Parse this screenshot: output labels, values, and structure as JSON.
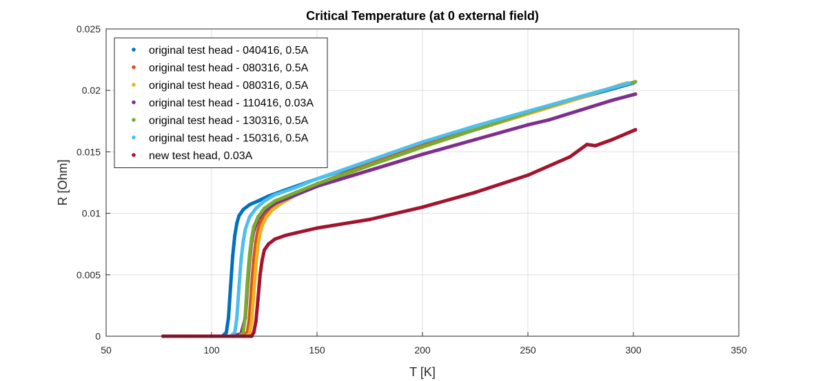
{
  "chart_data": {
    "type": "scatter",
    "title": "Critical Temperature (at 0 external field)",
    "xlabel": "T [K]",
    "ylabel": "R [Ohm]",
    "xlim": [
      50,
      350
    ],
    "ylim": [
      0,
      0.025
    ],
    "xticks": [
      50,
      100,
      150,
      200,
      250,
      300,
      350
    ],
    "yticks": [
      0,
      0.005,
      0.01,
      0.015,
      0.02,
      0.025
    ],
    "ytick_labels": [
      "0",
      "0.005",
      "0.01",
      "0.015",
      "0.02",
      "0.025"
    ],
    "grid": true,
    "legend_position": "top-left",
    "series": [
      {
        "name": "original test head - 040416, 0.5A",
        "color": "#0072BD",
        "x": [
          77,
          90,
          100,
          105,
          107,
          108,
          109,
          110,
          111,
          112,
          113,
          115,
          118,
          122,
          127,
          135,
          150,
          175,
          200,
          225,
          250,
          275,
          300
        ],
        "y": [
          0,
          0,
          0,
          0,
          0.0003,
          0.0015,
          0.004,
          0.0065,
          0.0082,
          0.0092,
          0.0098,
          0.0103,
          0.0107,
          0.011,
          0.0114,
          0.0119,
          0.0128,
          0.0142,
          0.0156,
          0.0168,
          0.0181,
          0.0194,
          0.0206
        ]
      },
      {
        "name": "original test head - 080316, 0.5A",
        "color": "#D95319",
        "x": [
          77,
          100,
          110,
          115,
          117,
          118,
          119,
          120,
          121,
          122,
          123,
          125,
          128,
          132,
          140,
          150,
          175,
          200,
          225,
          250,
          275,
          295
        ],
        "y": [
          0,
          0,
          0,
          0,
          0.0003,
          0.0015,
          0.004,
          0.0062,
          0.0077,
          0.0086,
          0.0092,
          0.0098,
          0.0104,
          0.0109,
          0.0116,
          0.0124,
          0.014,
          0.0155,
          0.0168,
          0.0181,
          0.0194,
          0.0205
        ]
      },
      {
        "name": "original test head - 080316, 0.5A",
        "color": "#EDB120",
        "x": [
          77,
          100,
          110,
          116,
          118,
          119,
          120,
          121,
          122,
          123,
          124,
          126,
          129,
          133,
          140,
          150,
          175,
          200,
          225,
          250,
          275,
          297
        ],
        "y": [
          0,
          0,
          0,
          0,
          0.0002,
          0.0012,
          0.0035,
          0.0058,
          0.0074,
          0.0084,
          0.009,
          0.0097,
          0.0103,
          0.0108,
          0.0115,
          0.0123,
          0.0139,
          0.0154,
          0.0168,
          0.0181,
          0.0194,
          0.0206
        ]
      },
      {
        "name": "original test head - 110416, 0.03A",
        "color": "#7E2F8E",
        "x": [
          77,
          100,
          110,
          114,
          116,
          117,
          118,
          119,
          120,
          122,
          125,
          130,
          140,
          150,
          175,
          200,
          225,
          250,
          260,
          275,
          290,
          301
        ],
        "y": [
          0,
          0,
          0,
          0.0002,
          0.0015,
          0.004,
          0.0062,
          0.0077,
          0.0086,
          0.0095,
          0.0102,
          0.0108,
          0.0115,
          0.0122,
          0.0135,
          0.0148,
          0.016,
          0.0172,
          0.0176,
          0.0184,
          0.0192,
          0.0197
        ]
      },
      {
        "name": "original test head - 130316, 0.5A",
        "color": "#77AC30",
        "x": [
          77,
          100,
          110,
          113,
          115,
          116,
          117,
          118,
          119,
          120,
          122,
          125,
          130,
          140,
          150,
          175,
          200,
          225,
          250,
          275,
          301
        ],
        "y": [
          0,
          0,
          0,
          0,
          0.0003,
          0.0018,
          0.0045,
          0.0066,
          0.008,
          0.0089,
          0.0097,
          0.0104,
          0.011,
          0.0117,
          0.0124,
          0.0139,
          0.0154,
          0.0168,
          0.0182,
          0.0195,
          0.0207
        ]
      },
      {
        "name": "original test head - 150316, 0.5A",
        "color": "#4DBEEE",
        "x": [
          77,
          95,
          105,
          109,
          111,
          112,
          113,
          114,
          115,
          116,
          118,
          121,
          125,
          130,
          140,
          150,
          175,
          200,
          225,
          250,
          275,
          298
        ],
        "y": [
          0,
          0,
          0,
          0,
          0.0003,
          0.0015,
          0.004,
          0.0062,
          0.0077,
          0.0087,
          0.0097,
          0.0104,
          0.011,
          0.0115,
          0.0121,
          0.0128,
          0.0143,
          0.0158,
          0.0171,
          0.0183,
          0.0195,
          0.0206
        ]
      },
      {
        "name": "new test head, 0.03A",
        "color": "#A2142F",
        "x": [
          77,
          100,
          115,
          119,
          120,
          121,
          122,
          123,
          124,
          125,
          127,
          130,
          135,
          140,
          150,
          175,
          200,
          225,
          250,
          270,
          278,
          282,
          290,
          301
        ],
        "y": [
          0,
          0,
          0,
          0,
          0.0003,
          0.0012,
          0.003,
          0.005,
          0.0062,
          0.007,
          0.0075,
          0.0079,
          0.0082,
          0.0084,
          0.0088,
          0.0095,
          0.0105,
          0.0117,
          0.0131,
          0.0146,
          0.0156,
          0.0155,
          0.016,
          0.0168
        ]
      }
    ]
  }
}
